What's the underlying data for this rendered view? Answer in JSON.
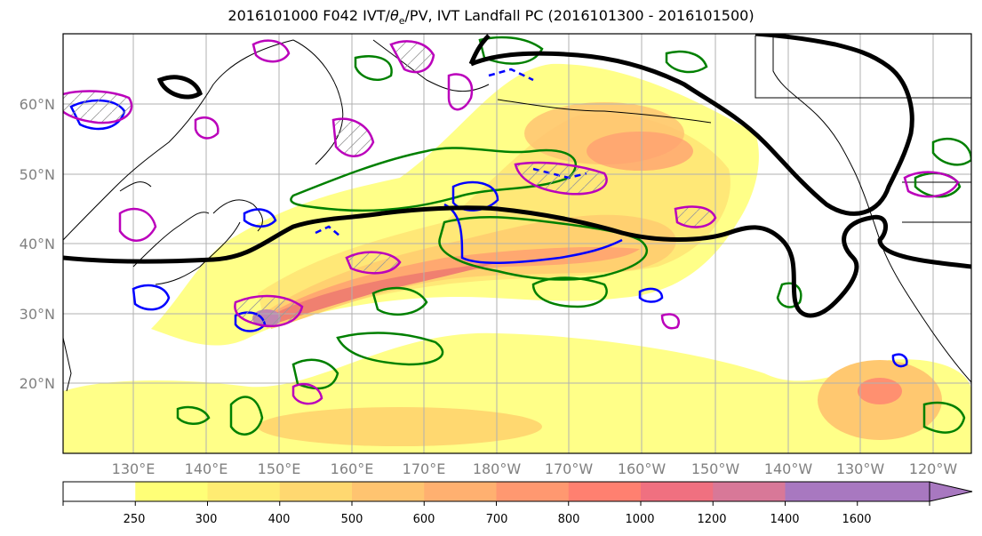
{
  "title": {
    "prefix": "2016101000 F042 IVT/",
    "theta": "θ",
    "theta_sub": "e",
    "suffix": "/PV, IVT Landfall PC (2016101300 - 2016101500)"
  },
  "map": {
    "lat_labels": [
      "60°N",
      "50°N",
      "40°N",
      "30°N",
      "20°N"
    ],
    "lon_labels": [
      "130°E",
      "140°E",
      "150°E",
      "160°E",
      "170°E",
      "180°W",
      "170°W",
      "160°W",
      "150°W",
      "140°W",
      "130°W",
      "120°W"
    ],
    "colors": {
      "ivt_contour": "#000000",
      "pv": "#008000",
      "theta_e_pos": "#0000ff",
      "theta_e_neg": "#bb00bb"
    }
  },
  "colorbar": {
    "ticks": [
      "250",
      "300",
      "400",
      "500",
      "600",
      "700",
      "800",
      "1000",
      "1200",
      "1400",
      "1600"
    ],
    "colors": [
      "#ffffff",
      "#ffff77",
      "#ffec72",
      "#ffd870",
      "#ffc470",
      "#ffb070",
      "#ff9870",
      "#ff8070",
      "#f07080",
      "#d87898",
      "#a878c0"
    ]
  }
}
